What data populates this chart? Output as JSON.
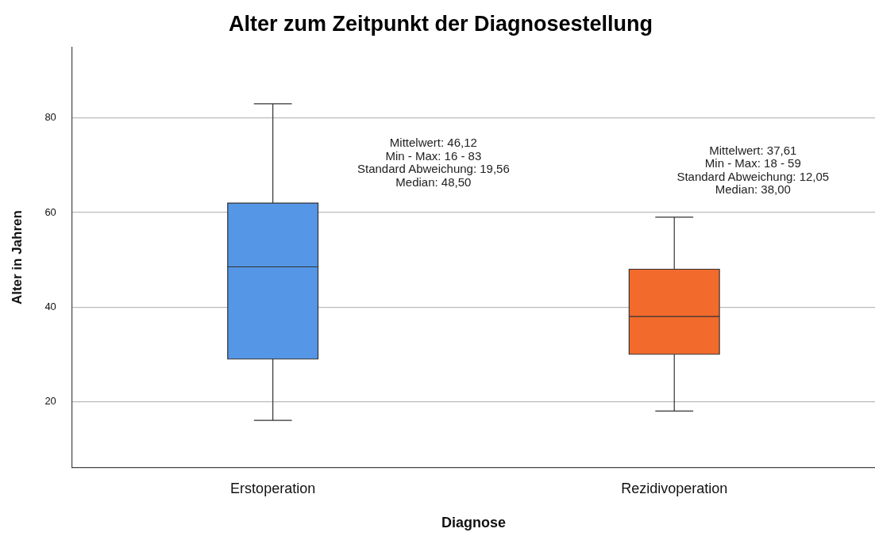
{
  "chart_data": {
    "type": "box",
    "title": "Alter zum Zeitpunkt der Diagnosestellung",
    "xlabel": "Diagnose",
    "ylabel": "Alter in Jahren",
    "categories": [
      "Erstoperation",
      "Rezidivoperation"
    ],
    "colors": [
      "#5596e6",
      "#f26a2c"
    ],
    "boxes": [
      {
        "low": 16,
        "q1": 29,
        "median": 48.5,
        "q3": 62,
        "high": 83
      },
      {
        "low": 18,
        "q1": 30,
        "median": 38,
        "q3": 48,
        "high": 59
      }
    ],
    "ylim": [
      6,
      95
    ],
    "yticks": [
      20,
      40,
      60,
      80
    ],
    "grid": "y",
    "legend": false,
    "annotations": [
      "Mittelwert: 46,12\nMin - Max: 16 - 83\nStandard Abweichung: 19,56\nMedian: 48,50",
      "Mittelwert: 37,61\nMin - Max: 18 - 59\nStandard Abweichung: 12,05\nMedian: 38,00"
    ]
  }
}
